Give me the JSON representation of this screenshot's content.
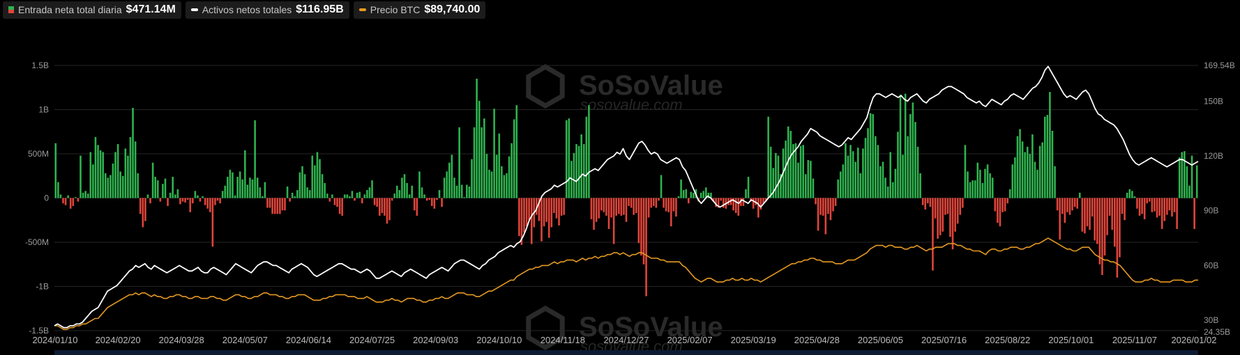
{
  "legend": {
    "inflow_label": "Entrada neta total diaria",
    "inflow_value": "$471.14M",
    "assets_label": "Activos netos totales",
    "assets_value": "$116.95B",
    "btc_label": "Precio BTC",
    "btc_value": "$89,740.00"
  },
  "watermark": {
    "text": "SoSoValue",
    "sub": "sosovalue.com"
  },
  "colors": {
    "positive": "#2fb34f",
    "negative": "#e0453b",
    "assets_line": "#ffffff",
    "btc_line": "#e69a23",
    "background": "#000000",
    "grid": "#262626"
  },
  "chart_data": {
    "type": "bar",
    "x_tick_labels": [
      "2024/01/10",
      "2024/02/20",
      "2024/03/28",
      "2024/05/07",
      "2024/06/14",
      "2024/07/25",
      "2024/09/03",
      "2024/10/10",
      "2024/11/18",
      "2024/12/27",
      "2025/02/07",
      "2025/03/19",
      "2025/04/28",
      "2025/06/05",
      "2025/07/16",
      "2025/08/22",
      "2025/10/01",
      "2025/11/07",
      "2026/01/02"
    ],
    "x_range": [
      "2024/01/10",
      "2026/01/02"
    ],
    "y_left": {
      "ticks": [
        "1.5B",
        "1B",
        "500M",
        "0",
        "-500M",
        "-1B",
        "-1.5B"
      ],
      "range": [
        -1500,
        1500
      ],
      "unit": "millions USD"
    },
    "y_right": {
      "ticks": [
        "169.54B",
        "150B",
        "120B",
        "90B",
        "60B",
        "30B",
        "24.35B"
      ],
      "range": [
        24.35,
        169.54
      ],
      "unit": "billions USD"
    },
    "grid": true,
    "legend_position": "top-left",
    "series": [
      {
        "name": "Entrada neta total diaria",
        "type": "bar",
        "values": [
          620,
          180,
          40,
          -60,
          -80,
          30,
          -120,
          -90,
          10,
          -40,
          480,
          60,
          80,
          50,
          520,
          380,
          690,
          600,
          540,
          520,
          280,
          230,
          260,
          390,
          520,
          610,
          300,
          250,
          560,
          480,
          690,
          1020,
          640,
          280,
          -180,
          -330,
          -260,
          40,
          -60,
          400,
          240,
          200,
          -40,
          160,
          220,
          -90,
          60,
          240,
          40,
          100,
          -70,
          -40,
          -50,
          -20,
          -160,
          -60,
          80,
          30,
          -40,
          20,
          -80,
          -120,
          -160,
          -550,
          -80,
          -30,
          -60,
          80,
          140,
          240,
          320,
          290,
          30,
          240,
          300,
          210,
          540,
          150,
          230,
          210,
          880,
          230,
          120,
          20,
          180,
          -110,
          -110,
          -180,
          -180,
          -180,
          -180,
          -140,
          -140,
          130,
          -40,
          60,
          20,
          90,
          290,
          360,
          270,
          120,
          90,
          480,
          370,
          520,
          440,
          270,
          170,
          50,
          -40,
          40,
          -80,
          -100,
          -180,
          -200,
          40,
          40,
          20,
          80,
          -30,
          60,
          70,
          -60,
          40,
          90,
          120,
          200,
          -80,
          -100,
          -200,
          -170,
          -200,
          -290,
          -250,
          -30,
          50,
          140,
          90,
          230,
          270,
          170,
          40,
          140,
          -140,
          -200,
          300,
          120,
          40,
          -30,
          -20,
          -90,
          -120,
          -20,
          90,
          -100,
          230,
          300,
          400,
          490,
          230,
          140,
          800,
          150,
          10,
          150,
          130,
          440,
          800,
          1350,
          1100,
          800,
          900,
          500,
          320,
          300,
          1010,
          490,
          730,
          360,
          260,
          280,
          470,
          620,
          890,
          1050,
          -430,
          -530,
          -390,
          -320,
          -250,
          -520,
          -330,
          -190,
          -260,
          -490,
          -320,
          -270,
          -450,
          -330,
          -170,
          -230,
          -310,
          -200,
          -190,
          880,
          900,
          420,
          510,
          610,
          590,
          720,
          610,
          920,
          1050,
          -240,
          -360,
          -270,
          -230,
          -140,
          -160,
          -200,
          -350,
          -220,
          -520,
          -200,
          -180,
          -200,
          -190,
          -270,
          -90,
          -110,
          -190,
          -170,
          -510,
          -650,
          -750,
          -1110,
          -220,
          -110,
          -90,
          -110,
          -30,
          260,
          -110,
          -150,
          -160,
          -320,
          -150,
          -210,
          20,
          210,
          90,
          100,
          -60,
          70,
          60,
          100,
          -40,
          60,
          80,
          120,
          60,
          60,
          -40,
          -100,
          -110,
          -30,
          -110,
          -120,
          -80,
          -80,
          -140,
          -170,
          -200,
          -90,
          -90,
          100,
          240,
          -40,
          -120,
          -80,
          -220,
          -130,
          -60,
          -40,
          920,
          580,
          340,
          510,
          480,
          270,
          560,
          650,
          810,
          760,
          610,
          620,
          400,
          590,
          600,
          270,
          430,
          420,
          220,
          -70,
          -370,
          -190,
          -200,
          -410,
          -180,
          -250,
          -150,
          -90,
          210,
          300,
          380,
          620,
          480,
          600,
          530,
          410,
          570,
          280,
          560,
          680,
          790,
          960,
          950,
          700,
          600,
          360,
          410,
          230,
          130,
          520,
          180,
          330,
          750,
          1170,
          490,
          1180,
          700,
          950,
          1080,
          860,
          580,
          280,
          -80,
          -130,
          -60,
          -100,
          -820,
          -230,
          -460,
          -420,
          -380,
          -190,
          -180,
          -440,
          -580,
          -380,
          -290,
          -190,
          -110,
          600,
          300,
          180,
          200,
          200,
          400,
          320,
          170,
          330,
          380,
          280,
          230,
          -150,
          -280,
          -320,
          -160,
          -150,
          -60,
          100,
          380,
          460,
          700,
          780,
          640,
          520,
          580,
          500,
          720,
          410,
          320,
          590,
          630,
          920,
          940,
          1200,
          760,
          360,
          -140,
          -470,
          -180,
          -280,
          -160,
          -190,
          -140,
          -100,
          -120,
          60,
          -380,
          -400,
          -320,
          -360,
          -210,
          -480,
          -520,
          -750,
          -870,
          -650,
          -420,
          -200,
          -360,
          -550,
          -900,
          -670,
          -180,
          -250,
          60,
          100,
          80,
          20,
          -120,
          -200,
          -180,
          -240,
          -60,
          -40,
          -160,
          -150,
          -220,
          -200,
          -350,
          -260,
          -190,
          -140,
          -210,
          -160,
          -350,
          460,
          520,
          530,
          360,
          140,
          480,
          -350,
          370
        ]
      },
      {
        "name": "Activos netos totales",
        "type": "line",
        "values": [
          27,
          28,
          27,
          26,
          26,
          27,
          27,
          28,
          28,
          29,
          31,
          33,
          35,
          36,
          37,
          40,
          43,
          46,
          47,
          48,
          49,
          51,
          53,
          55,
          57,
          58,
          60,
          59,
          60,
          61,
          59,
          58,
          60,
          59,
          58,
          57,
          56,
          57,
          58,
          59,
          60,
          59,
          58,
          57,
          57,
          58,
          59,
          57,
          56,
          56,
          58,
          59,
          58,
          57,
          56,
          55,
          57,
          59,
          61,
          60,
          59,
          58,
          57,
          56,
          58,
          60,
          61,
          62,
          62,
          61,
          60,
          60,
          59,
          58,
          57,
          56,
          58,
          59,
          60,
          61,
          60,
          59,
          57,
          55,
          54,
          55,
          56,
          57,
          58,
          59,
          60,
          61,
          61,
          60,
          59,
          58,
          58,
          57,
          56,
          57,
          58,
          57,
          55,
          53,
          53,
          54,
          55,
          56,
          57,
          56,
          55,
          54,
          56,
          57,
          58,
          57,
          56,
          55,
          54,
          53,
          55,
          56,
          57,
          58,
          59,
          58,
          57,
          59,
          61,
          62,
          63,
          63,
          62,
          61,
          60,
          59,
          58,
          60,
          61,
          63,
          64,
          65,
          67,
          68,
          69,
          70,
          71,
          70,
          72,
          73,
          76,
          80,
          85,
          88,
          90,
          94,
          98,
          100,
          101,
          102,
          104,
          103,
          104,
          105,
          106,
          108,
          107,
          106,
          108,
          110,
          109,
          111,
          112,
          113,
          112,
          114,
          116,
          118,
          119,
          120,
          122,
          121,
          124,
          120,
          118,
          121,
          124,
          127,
          128,
          126,
          123,
          121,
          122,
          121,
          118,
          117,
          116,
          117,
          118,
          119,
          118,
          114,
          112,
          108,
          104,
          100,
          96,
          94,
          96,
          98,
          97,
          95,
          93,
          92,
          93,
          94,
          95,
          96,
          95,
          94,
          96,
          95,
          94,
          96,
          95,
          94,
          92,
          94,
          96,
          98,
          100,
          103,
          106,
          110,
          114,
          118,
          121,
          123,
          125,
          128,
          130,
          132,
          135,
          134,
          133,
          131,
          130,
          129,
          128,
          127,
          126,
          125,
          126,
          128,
          130,
          129,
          131,
          133,
          135,
          138,
          141,
          147,
          152,
          154,
          154,
          153,
          152,
          153,
          154,
          153,
          152,
          153,
          151,
          150,
          152,
          153,
          154,
          152,
          150,
          149,
          151,
          152,
          153,
          154,
          156,
          157,
          158,
          158,
          157,
          156,
          155,
          154,
          152,
          151,
          150,
          149,
          150,
          148,
          147,
          149,
          151,
          150,
          149,
          148,
          150,
          151,
          153,
          154,
          153,
          152,
          151,
          153,
          155,
          157,
          158,
          160,
          163,
          167,
          169,
          166,
          163,
          160,
          157,
          154,
          152,
          153,
          152,
          151,
          153,
          155,
          156,
          154,
          150,
          146,
          143,
          142,
          140,
          139,
          138,
          137,
          135,
          132,
          129,
          125,
          121,
          118,
          116,
          115,
          116,
          117,
          118,
          119,
          118,
          117,
          116,
          115,
          114,
          115,
          116,
          117,
          118,
          118,
          117,
          116,
          115,
          116,
          117
        ]
      },
      {
        "name": "Precio BTC",
        "type": "line",
        "values": [
          27,
          27,
          26,
          25,
          25,
          26,
          26,
          27,
          27,
          28,
          28,
          29,
          30,
          31,
          31,
          33,
          35,
          37,
          38,
          39,
          40,
          41,
          42,
          43,
          44,
          44,
          45,
          44,
          45,
          45,
          44,
          43,
          44,
          43,
          43,
          42,
          42,
          43,
          43,
          44,
          44,
          43,
          43,
          42,
          42,
          43,
          43,
          42,
          42,
          42,
          43,
          43,
          42,
          42,
          41,
          41,
          42,
          43,
          44,
          44,
          43,
          43,
          42,
          42,
          43,
          43,
          44,
          45,
          45,
          44,
          44,
          44,
          43,
          43,
          42,
          42,
          43,
          43,
          44,
          44,
          44,
          43,
          42,
          41,
          41,
          41,
          42,
          42,
          43,
          43,
          44,
          44,
          44,
          44,
          43,
          43,
          43,
          42,
          42,
          42,
          43,
          42,
          41,
          40,
          40,
          40,
          41,
          41,
          42,
          41,
          41,
          40,
          41,
          42,
          42,
          42,
          41,
          41,
          40,
          40,
          41,
          41,
          42,
          42,
          43,
          42,
          42,
          43,
          44,
          45,
          45,
          45,
          44,
          44,
          44,
          43,
          43,
          44,
          45,
          46,
          46,
          47,
          48,
          49,
          50,
          51,
          52,
          52,
          54,
          55,
          56,
          57,
          58,
          58,
          59,
          59,
          60,
          60,
          60,
          61,
          62,
          61,
          62,
          62,
          63,
          63,
          63,
          62,
          63,
          64,
          63,
          64,
          64,
          65,
          64,
          65,
          65,
          66,
          66,
          67,
          67,
          66,
          67,
          66,
          65,
          66,
          66,
          67,
          67,
          66,
          65,
          64,
          64,
          64,
          63,
          63,
          62,
          62,
          62,
          62,
          62,
          60,
          59,
          57,
          55,
          53,
          52,
          51,
          52,
          53,
          53,
          52,
          51,
          51,
          51,
          52,
          52,
          53,
          52,
          52,
          53,
          52,
          52,
          53,
          52,
          52,
          51,
          52,
          53,
          54,
          55,
          56,
          57,
          58,
          59,
          60,
          61,
          61,
          62,
          62,
          63,
          63,
          64,
          64,
          63,
          63,
          62,
          62,
          62,
          62,
          61,
          61,
          61,
          62,
          63,
          63,
          63,
          64,
          65,
          66,
          67,
          69,
          70,
          71,
          71,
          71,
          70,
          71,
          71,
          70,
          70,
          70,
          69,
          69,
          70,
          70,
          71,
          70,
          69,
          68,
          69,
          69,
          70,
          70,
          70,
          71,
          72,
          72,
          72,
          71,
          71,
          70,
          69,
          69,
          68,
          68,
          68,
          67,
          66,
          68,
          69,
          69,
          68,
          68,
          69,
          69,
          70,
          70,
          70,
          69,
          69,
          70,
          70,
          71,
          72,
          72,
          73,
          74,
          75,
          74,
          73,
          72,
          71,
          70,
          69,
          69,
          68,
          68,
          69,
          70,
          70,
          70,
          68,
          66,
          65,
          64,
          63,
          63,
          62,
          62,
          61,
          60,
          58,
          56,
          54,
          52,
          51,
          51,
          51,
          52,
          52,
          53,
          52,
          52,
          51,
          51,
          51,
          51,
          52,
          52,
          52,
          52,
          51,
          51,
          51,
          52,
          52
        ]
      }
    ]
  }
}
